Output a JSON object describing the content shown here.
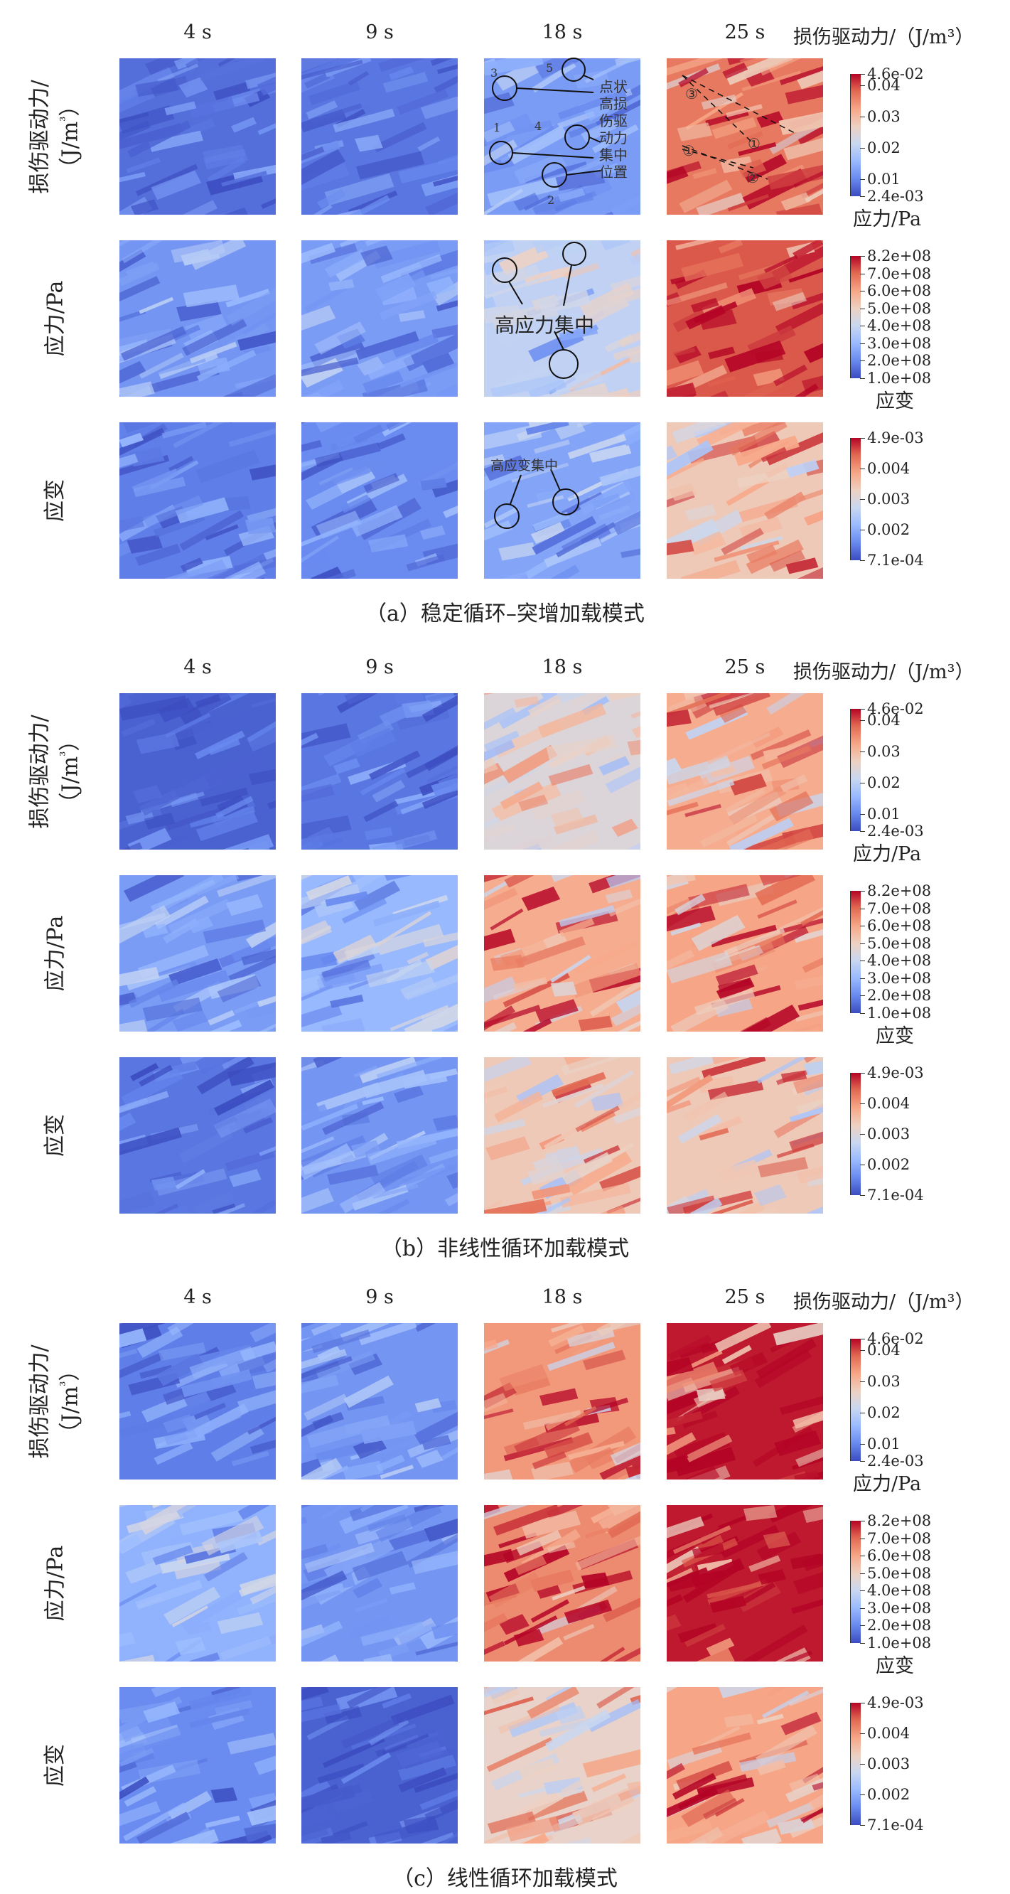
{
  "figure": {
    "time_labels": [
      "4 s",
      "9 s",
      "18 s",
      "25 s"
    ],
    "row_labels": {
      "damage": [
        "损伤驱动力/",
        "（J/m",
        "³",
        "）"
      ],
      "stress": "应力/Pa",
      "strain": "应变"
    },
    "colorbars": {
      "damage": {
        "title": "损伤驱动力/（J/m³）",
        "ticks": [
          "4.6e-02",
          "0.04",
          "0.03",
          "0.02",
          "0.01",
          "2.4e-03"
        ]
      },
      "stress": {
        "title": "应力/Pa",
        "ticks": [
          "8.2e+08",
          "7.0e+08",
          "6.0e+08",
          "5.0e+08",
          "4.0e+08",
          "3.0e+08",
          "2.0e+08",
          "1.0e+08"
        ]
      },
      "strain": {
        "title": "应变",
        "ticks": [
          "4.9e-03",
          "0.004",
          "0.003",
          "0.002",
          "7.1e-04"
        ]
      }
    },
    "colormap": [
      "#3b4cc0",
      "#6788ee",
      "#9abbff",
      "#c9d7f0",
      "#edd1c2",
      "#f7a889",
      "#e26952",
      "#b40426"
    ],
    "panels": [
      {
        "caption": "（a）稳定循环–突增加载模式",
        "levels": {
          "damage": [
            0.08,
            0.1,
            0.2,
            0.82
          ],
          "stress": [
            0.18,
            0.2,
            0.4,
            0.88
          ],
          "strain": [
            0.12,
            0.15,
            0.22,
            0.6
          ]
        },
        "annotations": {
          "damage_18s_text": "点状高损伤驱动力集中位置",
          "damage_18s_numbers": [
            "3",
            "5",
            "1",
            "4",
            "2"
          ],
          "damage_25s_numbers": [
            "③",
            "①",
            "①",
            "②"
          ],
          "stress_18s_text": "高应力集中",
          "strain_18s_text": "高应变集中"
        }
      },
      {
        "caption": "（b）非线性循环加载模式",
        "levels": {
          "damage": [
            0.05,
            0.1,
            0.5,
            0.7
          ],
          "stress": [
            0.2,
            0.28,
            0.7,
            0.72
          ],
          "strain": [
            0.1,
            0.18,
            0.6,
            0.6
          ]
        }
      },
      {
        "caption": "（c）线性循环加载模式",
        "levels": {
          "damage": [
            0.12,
            0.18,
            0.75,
            0.97
          ],
          "stress": [
            0.26,
            0.18,
            0.78,
            0.97
          ],
          "strain": [
            0.15,
            0.05,
            0.55,
            0.72
          ]
        }
      }
    ]
  }
}
